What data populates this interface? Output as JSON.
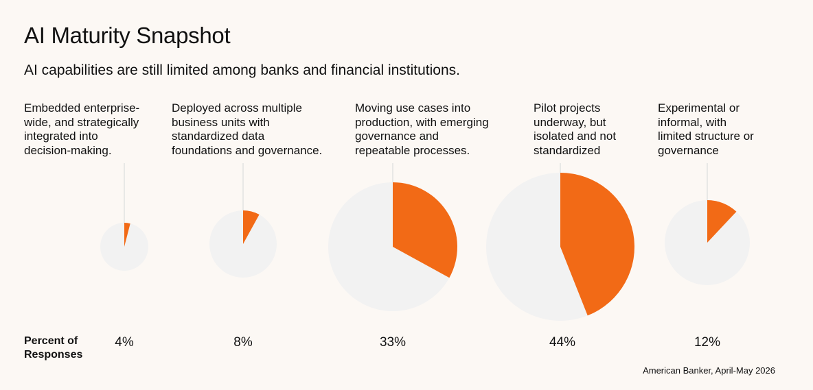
{
  "title": "AI Maturity Snapshot",
  "subtitle": "AI capabilities are still limited among banks and financial institutions.",
  "axis_label": "Percent of\nResponses",
  "source": "American Banker, April-May 2026",
  "colors": {
    "accent": "#f26a16",
    "remainder": "#f2f2f2",
    "leader": "#e2e2e2"
  },
  "chart_data": {
    "type": "pie",
    "title": "AI Maturity Snapshot",
    "unit": "%",
    "categories": [
      "Embedded enterprise-\nwide, and strategically\nintegrated into\ndecision-making.",
      "Deployed across multiple\nbusiness units with\nstandardized data\nfoundations and governance.",
      "Moving use cases into\nproduction, with emerging\ngovernance and\nrepeatable processes.",
      "Pilot projects\nunderway, but\nisolated and not\nstandardized",
      "Experimental or\ninformal, with\nlimited structure or\ngovernance"
    ],
    "values": [
      4,
      8,
      33,
      44,
      12
    ],
    "value_labels": [
      "4%",
      "8%",
      "33%",
      "44%",
      "12%"
    ]
  }
}
